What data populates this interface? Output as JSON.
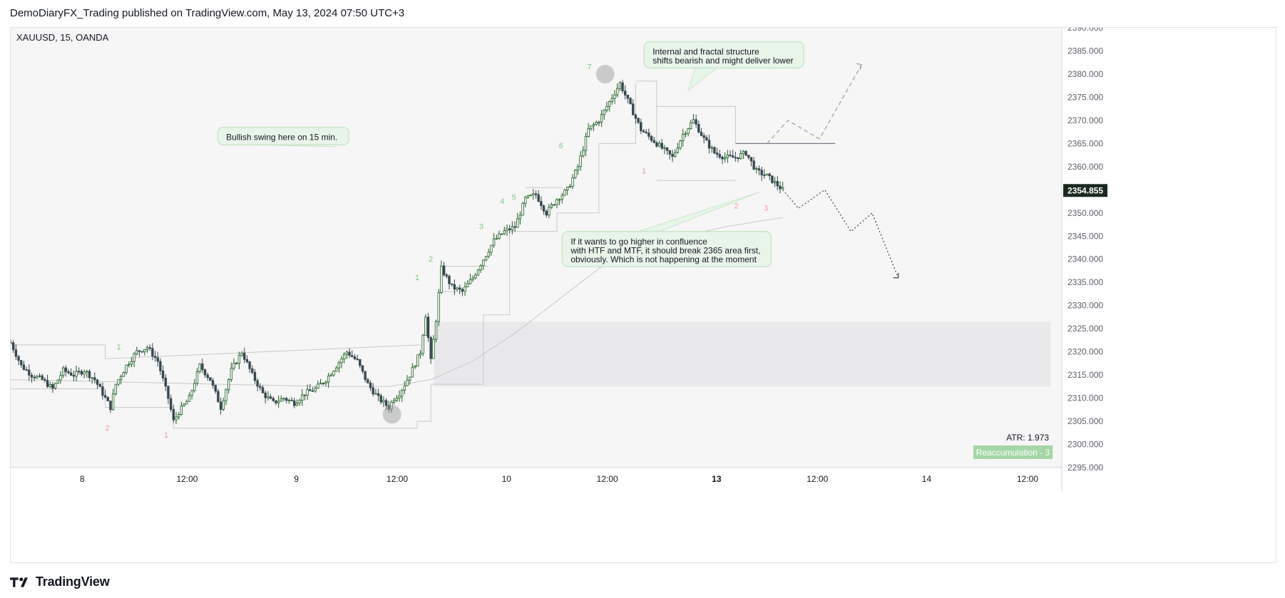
{
  "header": {
    "title": "DemoDiaryFX_Trading published on TradingView.com, May 13, 2024 07:50 UTC+3"
  },
  "footer": {
    "brand": "TradingView"
  },
  "chart_data": {
    "type": "candlestick",
    "symbol_label": "XAUUSD, 15, OANDA",
    "ylim": [
      2295,
      2390
    ],
    "y_ticks": [
      2295,
      2300,
      2305,
      2310,
      2315,
      2320,
      2325,
      2330,
      2335,
      2340,
      2345,
      2350,
      2355,
      2360,
      2365,
      2370,
      2375,
      2380,
      2385,
      2390
    ],
    "y_tick_labels": [
      "2295.000",
      "2300.000",
      "2305.000",
      "2310.000",
      "2315.000",
      "2320.000",
      "2325.000",
      "2330.000",
      "2335.000",
      "2340.000",
      "2345.000",
      "2350.000",
      "2355.000",
      "2360.000",
      "2365.000",
      "2370.000",
      "2375.000",
      "2380.000",
      "2385.000",
      "2390.000"
    ],
    "x_ticks": [
      {
        "t": 6.8,
        "label": "8",
        "bold": false
      },
      {
        "t": 16.8,
        "label": "12:00",
        "bold": false
      },
      {
        "t": 27.2,
        "label": "9",
        "bold": false
      },
      {
        "t": 36.8,
        "label": "12:00",
        "bold": false
      },
      {
        "t": 47.2,
        "label": "10",
        "bold": false
      },
      {
        "t": 56.8,
        "label": "12:00",
        "bold": false
      },
      {
        "t": 67.2,
        "label": "13",
        "bold": true
      },
      {
        "t": 76.8,
        "label": "12:00",
        "bold": false
      },
      {
        "t": 87.2,
        "label": "14",
        "bold": false
      },
      {
        "t": 96.8,
        "label": "12:00",
        "bold": false
      }
    ],
    "last_price": 2354.855,
    "last_price_label": "2354.855",
    "atr_label": "ATR: 1.973",
    "badge_label": "Reaccumulation - 3",
    "price_path": [
      [
        0,
        2322
      ],
      [
        1,
        2317
      ],
      [
        2,
        2315
      ],
      [
        3,
        2314
      ],
      [
        4,
        2312
      ],
      [
        5,
        2316
      ],
      [
        6,
        2315
      ],
      [
        7,
        2316
      ],
      [
        8,
        2314
      ],
      [
        9,
        2310
      ],
      [
        9.5,
        2308
      ],
      [
        10,
        2313
      ],
      [
        11,
        2317
      ],
      [
        12,
        2320
      ],
      [
        13,
        2321
      ],
      [
        14,
        2318
      ],
      [
        15,
        2310
      ],
      [
        15.5,
        2305
      ],
      [
        16,
        2307
      ],
      [
        17,
        2310
      ],
      [
        18,
        2317
      ],
      [
        19,
        2314
      ],
      [
        20,
        2308
      ],
      [
        21,
        2316
      ],
      [
        22,
        2320
      ],
      [
        23,
        2315
      ],
      [
        24,
        2311
      ],
      [
        25,
        2309
      ],
      [
        26,
        2310
      ],
      [
        27,
        2309
      ],
      [
        28,
        2311
      ],
      [
        29,
        2312
      ],
      [
        30,
        2314
      ],
      [
        31,
        2317
      ],
      [
        32,
        2320
      ],
      [
        33,
        2318
      ],
      [
        34,
        2313
      ],
      [
        35,
        2310
      ],
      [
        36,
        2308
      ],
      [
        36.5,
        2310
      ],
      [
        37,
        2311
      ],
      [
        38,
        2315
      ],
      [
        39,
        2320
      ],
      [
        39.5,
        2328
      ],
      [
        40,
        2318
      ],
      [
        40.5,
        2327
      ],
      [
        41,
        2338
      ],
      [
        42,
        2334
      ],
      [
        43,
        2333
      ],
      [
        44,
        2336
      ],
      [
        45,
        2340
      ],
      [
        46,
        2344
      ],
      [
        47,
        2346
      ],
      [
        48,
        2347
      ],
      [
        49,
        2353
      ],
      [
        50,
        2354
      ],
      [
        51,
        2350
      ],
      [
        52,
        2353
      ],
      [
        53,
        2355
      ],
      [
        54,
        2360
      ],
      [
        55,
        2368
      ],
      [
        56,
        2370
      ],
      [
        57,
        2374
      ],
      [
        58,
        2378
      ],
      [
        59,
        2373
      ],
      [
        60,
        2368
      ],
      [
        61,
        2366
      ],
      [
        62,
        2364
      ],
      [
        63,
        2362
      ],
      [
        64,
        2367
      ],
      [
        65,
        2370
      ],
      [
        66,
        2366
      ],
      [
        67,
        2363
      ],
      [
        68,
        2362
      ],
      [
        69,
        2362
      ],
      [
        70,
        2363
      ],
      [
        71,
        2359
      ],
      [
        72,
        2358
      ],
      [
        73,
        2356
      ],
      [
        73.5,
        2355
      ]
    ],
    "moving_average": [
      [
        0,
        2314
      ],
      [
        10,
        2313.5
      ],
      [
        20,
        2313
      ],
      [
        30,
        2312.5
      ],
      [
        36,
        2312.5
      ],
      [
        40,
        2314
      ],
      [
        44,
        2318
      ],
      [
        48,
        2324
      ],
      [
        52,
        2331
      ],
      [
        56,
        2338
      ],
      [
        60,
        2342
      ],
      [
        64,
        2345
      ],
      [
        68,
        2347
      ],
      [
        72,
        2348.5
      ],
      [
        73.5,
        2349
      ]
    ],
    "structure_lines": [
      [
        [
          0,
          2321.5
        ],
        [
          9,
          2321.5
        ],
        [
          9,
          2318.5
        ],
        [
          39,
          2321.5
        ]
      ],
      [
        [
          0,
          2312
        ],
        [
          9,
          2312
        ],
        [
          9,
          2308
        ],
        [
          15.5,
          2308
        ],
        [
          15.5,
          2303.5
        ],
        [
          38.7,
          2303.5
        ],
        [
          38.7,
          2305
        ],
        [
          40,
          2305
        ],
        [
          40,
          2313
        ],
        [
          45,
          2313
        ],
        [
          45,
          2328
        ],
        [
          47.5,
          2328
        ],
        [
          47.5,
          2346
        ],
        [
          52,
          2346
        ],
        [
          52,
          2350
        ],
        [
          56,
          2350
        ],
        [
          56,
          2365
        ],
        [
          59.5,
          2365
        ],
        [
          59.5,
          2378
        ]
      ],
      [
        [
          41,
          2338.5
        ],
        [
          45.5,
          2338.5
        ]
      ],
      [
        [
          41,
          2333
        ],
        [
          43,
          2333
        ]
      ],
      [
        [
          49,
          2355.5
        ],
        [
          52.5,
          2355.5
        ]
      ],
      [
        [
          59.5,
          2378.5
        ],
        [
          61.5,
          2378.5
        ],
        [
          61.5,
          2365
        ]
      ],
      [
        [
          61.5,
          2373
        ],
        [
          69,
          2373
        ],
        [
          69,
          2365
        ]
      ],
      [
        [
          61.5,
          2357
        ],
        [
          69,
          2357
        ]
      ],
      [
        [
          69,
          2365
        ],
        [
          78.5,
          2365
        ]
      ]
    ],
    "demand_zone": {
      "x0": 40.3,
      "x1": 99,
      "y0": 2312.5,
      "y1": 2326.5
    },
    "projection_up": [
      [
        72,
        2365
      ],
      [
        74,
        2370
      ],
      [
        77,
        2366
      ],
      [
        81,
        2382
      ]
    ],
    "projection_down": [
      [
        73.5,
        2355
      ],
      [
        75,
        2351
      ],
      [
        77.5,
        2355
      ],
      [
        80,
        2346
      ],
      [
        82,
        2350
      ],
      [
        84.5,
        2336
      ]
    ],
    "markers": [
      {
        "x": 36.3,
        "y": 2306.5
      },
      {
        "x": 56.6,
        "y": 2380
      }
    ],
    "wave_labels": [
      {
        "x": 10.3,
        "y": 2320.5,
        "text": "1",
        "color": "#81c784"
      },
      {
        "x": 9.2,
        "y": 2303,
        "text": "2",
        "color": "#ef9a9a"
      },
      {
        "x": 14.8,
        "y": 2301.5,
        "text": "1",
        "color": "#ef9a9a"
      },
      {
        "x": 38.7,
        "y": 2335.5,
        "text": "1",
        "color": "#81c784"
      },
      {
        "x": 40,
        "y": 2339.5,
        "text": "2",
        "color": "#81c784"
      },
      {
        "x": 44.8,
        "y": 2346.5,
        "text": "3",
        "color": "#81c784"
      },
      {
        "x": 46.8,
        "y": 2352,
        "text": "4",
        "color": "#81c784"
      },
      {
        "x": 47.9,
        "y": 2352.8,
        "text": "5",
        "color": "#81c784"
      },
      {
        "x": 52.4,
        "y": 2364,
        "text": "6",
        "color": "#81c784"
      },
      {
        "x": 55.1,
        "y": 2381,
        "text": "7",
        "color": "#81c784"
      },
      {
        "x": 60.3,
        "y": 2358.5,
        "text": "1",
        "color": "#ef9a9a"
      },
      {
        "x": 69.1,
        "y": 2351,
        "text": "2",
        "color": "#ef9a9a"
      },
      {
        "x": 71.9,
        "y": 2350.5,
        "text": "3",
        "color": "#ef9a9a"
      }
    ],
    "callouts": [
      {
        "lines": [
          "Bullish swing here on 15 min."
        ],
        "x0": 19.7,
        "x1": 32.2,
        "y_top": 2368.5,
        "y_bottom": 2365.3,
        "tail": [
          31,
          2364.3
        ]
      },
      {
        "lines": [
          "Internal and fractal structure",
          "shifts bearish and might deliver lower"
        ],
        "x0": 60.3,
        "x1": 75.5,
        "y_top": 2387,
        "y_bottom": 2380.5,
        "tail": [
          64.5,
          2376.5
        ]
      },
      {
        "lines": [
          "If it wants to go higher in confluence",
          "with HTF and MTF, it should break 2365 area first,",
          "obviously. Which is not happening at the moment"
        ],
        "x0": 52.5,
        "x1": 72.4,
        "y_top": 2346,
        "y_bottom": 2340.5,
        "tail": [
          71.3,
          2354.5
        ]
      }
    ],
    "colors": {
      "up": "#1b5e20",
      "down": "#37474f",
      "callout_fill": "#e8f5e9",
      "callout_border": "#c8e6c9",
      "zone": "#e9e9eb",
      "badge": "#a5d6a7",
      "price_label_bg": "#1b2a1f"
    }
  }
}
